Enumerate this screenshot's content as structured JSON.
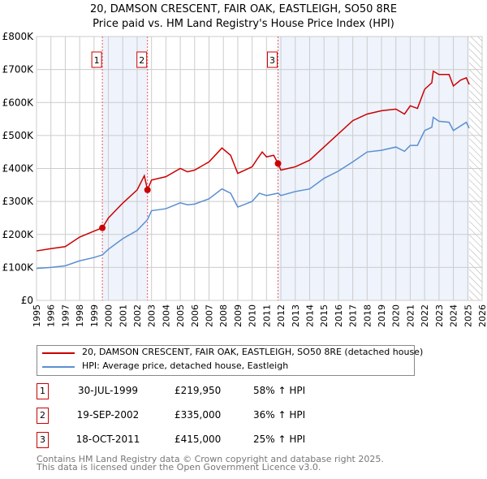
{
  "chart_data": {
    "type": "line",
    "title": "20, DAMSON CRESCENT, FAIR OAK, EASTLEIGH, SO50 8RE",
    "subtitle": "Price paid vs. HM Land Registry's House Price Index (HPI)",
    "xlim": [
      1995,
      2026
    ],
    "ylim": [
      0,
      800000
    ],
    "x_ticks": [
      "1995",
      "1996",
      "1997",
      "1998",
      "1999",
      "2000",
      "2001",
      "2002",
      "2003",
      "2004",
      "2005",
      "2006",
      "2007",
      "2008",
      "2009",
      "2010",
      "2011",
      "2012",
      "2013",
      "2014",
      "2015",
      "2016",
      "2017",
      "2018",
      "2019",
      "2020",
      "2021",
      "2022",
      "2023",
      "2024",
      "2025",
      "2026"
    ],
    "y_ticks": [
      {
        "v": 0,
        "label": "£0"
      },
      {
        "v": 100000,
        "label": "£100K"
      },
      {
        "v": 200000,
        "label": "£200K"
      },
      {
        "v": 300000,
        "label": "£300K"
      },
      {
        "v": 400000,
        "label": "£400K"
      },
      {
        "v": 500000,
        "label": "£500K"
      },
      {
        "v": 600000,
        "label": "£600K"
      },
      {
        "v": 700000,
        "label": "£700K"
      },
      {
        "v": 800000,
        "label": "£800K"
      }
    ],
    "grid": true,
    "shaded_ranges": [
      [
        1999.58,
        2002.72
      ],
      [
        2011.8,
        2025.1
      ]
    ],
    "future_hatch_from": 2025.1,
    "series": [
      {
        "name": "20, DAMSON CRESCENT, FAIR OAK, EASTLEIGH, SO50 8RE (detached house)",
        "color": "#cc0000",
        "x": [
          1995,
          1996,
          1997,
          1998,
          1999,
          1999.58,
          2000,
          2001,
          2002,
          2002.5,
          2002.72,
          2003,
          2004,
          2005,
          2005.5,
          2006,
          2007,
          2007.9,
          2008.5,
          2009,
          2010,
          2010.3,
          2010.7,
          2011,
          2011.5,
          2011.8,
          2012,
          2013,
          2014,
          2015,
          2016,
          2017,
          2018,
          2019,
          2020,
          2020.6,
          2021,
          2021.5,
          2022,
          2022.5,
          2022.6,
          2023,
          2023.7,
          2024,
          2024.5,
          2024.9,
          2025.1
        ],
        "y": [
          150000,
          157000,
          163000,
          192000,
          210000,
          220000,
          250000,
          295000,
          335000,
          378000,
          335000,
          365000,
          375000,
          400000,
          390000,
          395000,
          420000,
          462000,
          440000,
          385000,
          405000,
          425000,
          450000,
          435000,
          440000,
          415000,
          395000,
          405000,
          425000,
          465000,
          505000,
          545000,
          565000,
          575000,
          580000,
          565000,
          590000,
          582000,
          640000,
          660000,
          695000,
          685000,
          685000,
          650000,
          668000,
          675000,
          655000
        ]
      },
      {
        "name": "HPI: Average price, detached house, Eastleigh",
        "color": "#5b8fd0",
        "x": [
          1995,
          1996,
          1997,
          1998,
          1999,
          1999.58,
          2000,
          2001,
          2002,
          2002.72,
          2003,
          2004,
          2005,
          2005.5,
          2006,
          2007,
          2007.9,
          2008.5,
          2009,
          2010,
          2010.5,
          2011,
          2011.8,
          2012,
          2013,
          2014,
          2015,
          2016,
          2017,
          2018,
          2019,
          2020,
          2020.6,
          2021,
          2021.5,
          2022,
          2022.5,
          2022.6,
          2023,
          2023.7,
          2024,
          2024.9,
          2025.1
        ],
        "y": [
          97000,
          100000,
          105000,
          120000,
          130000,
          138000,
          155000,
          187000,
          212000,
          245000,
          272000,
          278000,
          296000,
          290000,
          292000,
          308000,
          338000,
          325000,
          283000,
          300000,
          325000,
          318000,
          325000,
          318000,
          330000,
          338000,
          370000,
          392000,
          420000,
          450000,
          455000,
          465000,
          452000,
          470000,
          470000,
          515000,
          525000,
          555000,
          543000,
          540000,
          515000,
          540000,
          522000
        ]
      }
    ],
    "sales": [
      {
        "n": "1",
        "x": 1999.58,
        "price": 219950,
        "date": "30-JUL-1999",
        "price_label": "£219,950",
        "hpi": "58% ↑ HPI"
      },
      {
        "n": "2",
        "x": 2002.72,
        "price": 335000,
        "date": "19-SEP-2002",
        "price_label": "£335,000",
        "hpi": "36% ↑ HPI"
      },
      {
        "n": "3",
        "x": 2011.8,
        "price": 415000,
        "date": "18-OCT-2011",
        "price_label": "£415,000",
        "hpi": "25% ↑ HPI"
      }
    ]
  },
  "footer": {
    "line1": "Contains HM Land Registry data © Crown copyright and database right 2025.",
    "line2": "This data is licensed under the Open Government Licence v3.0."
  }
}
